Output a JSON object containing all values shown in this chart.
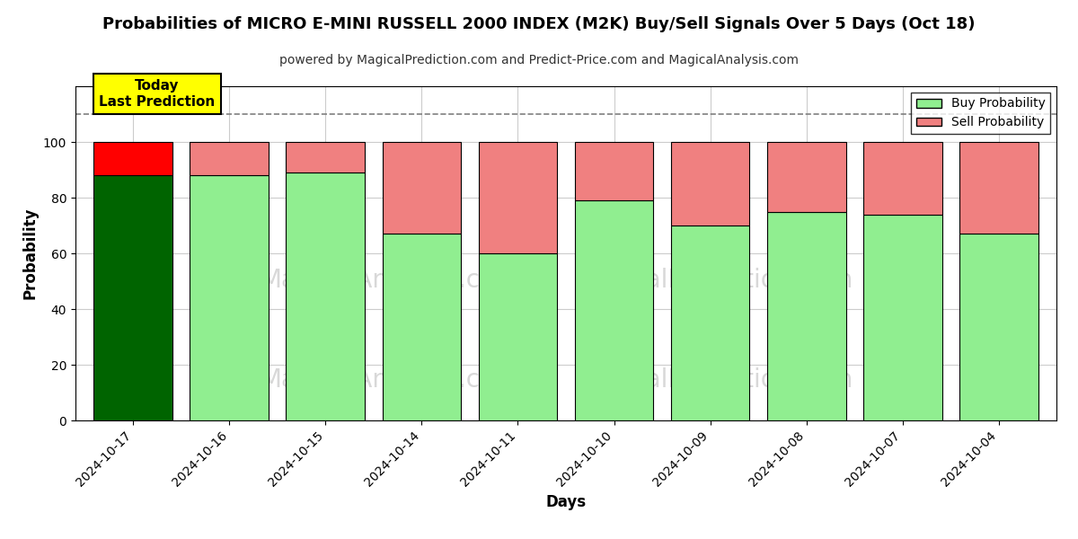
{
  "title": "Probabilities of MICRO E-MINI RUSSELL 2000 INDEX (M2K) Buy/Sell Signals Over 5 Days (Oct 18)",
  "subtitle": "powered by MagicalPrediction.com and Predict-Price.com and MagicalAnalysis.com",
  "xlabel": "Days",
  "ylabel": "Probability",
  "categories": [
    "2024-10-17",
    "2024-10-16",
    "2024-10-15",
    "2024-10-14",
    "2024-10-11",
    "2024-10-10",
    "2024-10-09",
    "2024-10-08",
    "2024-10-07",
    "2024-10-04"
  ],
  "buy_probs": [
    88,
    88,
    89,
    67,
    60,
    79,
    70,
    75,
    74,
    67
  ],
  "sell_probs": [
    12,
    12,
    11,
    33,
    40,
    21,
    30,
    25,
    26,
    33
  ],
  "buy_color_today": "#006400",
  "sell_color_today": "#FF0000",
  "buy_color_past": "#90EE90",
  "sell_color_past": "#F08080",
  "bar_edge_color": "#000000",
  "ylim": [
    0,
    120
  ],
  "yticks": [
    0,
    20,
    40,
    60,
    80,
    100
  ],
  "dashed_line_y": 110,
  "annotation_text": "Today\nLast Prediction",
  "annotation_bg_color": "#FFFF00",
  "watermark_color": "#C8C8C8",
  "legend_buy_label": "Buy Probability",
  "legend_sell_label": "Sell Probability",
  "background_color": "#FFFFFF",
  "grid_color": "#CCCCCC",
  "bar_width": 0.82
}
